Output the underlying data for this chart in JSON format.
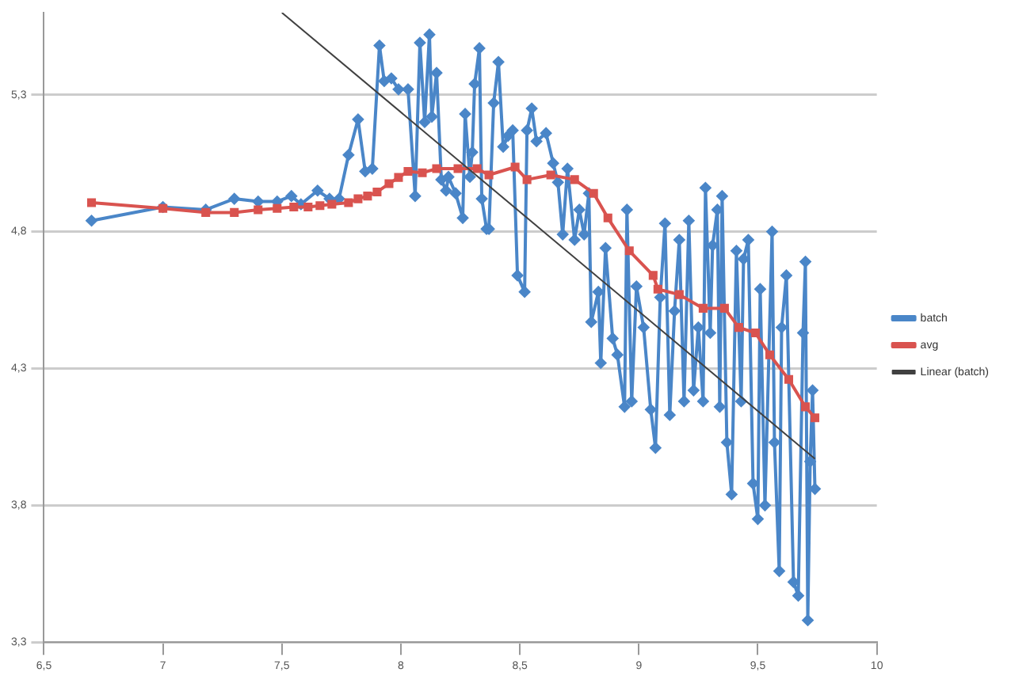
{
  "chart_data": {
    "type": "line",
    "xlim": [
      6.5,
      10
    ],
    "xticks": [
      {
        "value": 6.5,
        "label": "6,5"
      },
      7,
      {
        "value": 7.5,
        "label": "7,5"
      },
      8,
      {
        "value": 8.5,
        "label": "8,5"
      },
      9,
      {
        "value": 9.5,
        "label": "9,5"
      },
      10
    ],
    "ylim": [
      3.3,
      5.6
    ],
    "yticks": [
      {
        "value": 3.3,
        "label": "3,3"
      },
      {
        "value": 3.8,
        "label": "3,8"
      },
      {
        "value": 4.3,
        "label": "4,3"
      },
      {
        "value": 4.8,
        "label": "4,8"
      },
      {
        "value": 5.3,
        "label": "5,3"
      }
    ],
    "grid": "y",
    "legend": "right",
    "series": [
      {
        "name": "batch",
        "color": "#4a86c8",
        "marker": "diamond",
        "x": [
          6.7,
          7.0,
          7.18,
          7.3,
          7.4,
          7.48,
          7.54,
          7.58,
          7.65,
          7.7,
          7.74,
          7.78,
          7.82,
          7.85,
          7.88,
          7.91,
          7.93,
          7.96,
          7.99,
          8.03,
          8.06,
          8.08,
          8.1,
          8.12,
          8.13,
          8.15,
          8.17,
          8.19,
          8.2,
          8.23,
          8.26,
          8.27,
          8.29,
          8.3,
          8.31,
          8.33,
          8.34,
          8.36,
          8.37,
          8.39,
          8.41,
          8.43,
          8.45,
          8.47,
          8.49,
          8.52,
          8.53,
          8.55,
          8.57,
          8.61,
          8.64,
          8.66,
          8.68,
          8.7,
          8.73,
          8.75,
          8.77,
          8.79,
          8.8,
          8.83,
          8.84,
          8.86,
          8.89,
          8.91,
          8.94,
          8.95,
          8.97,
          8.99,
          9.02,
          9.05,
          9.07,
          9.09,
          9.11,
          9.13,
          9.15,
          9.17,
          9.19,
          9.21,
          9.23,
          9.25,
          9.27,
          9.28,
          9.3,
          9.31,
          9.33,
          9.34,
          9.35,
          9.37,
          9.39,
          9.41,
          9.43,
          9.44,
          9.46,
          9.48,
          9.5,
          9.51,
          9.53,
          9.56,
          9.57,
          9.59,
          9.6,
          9.62,
          9.65,
          9.67,
          9.69,
          9.7,
          9.71,
          9.72,
          9.73,
          9.74
        ],
        "values": [
          4.84,
          4.89,
          4.88,
          4.92,
          4.91,
          4.91,
          4.93,
          4.9,
          4.95,
          4.92,
          4.92,
          5.08,
          5.21,
          5.02,
          5.03,
          5.48,
          5.35,
          5.36,
          5.32,
          5.32,
          4.93,
          5.49,
          5.2,
          5.52,
          5.22,
          5.38,
          4.99,
          4.95,
          5.0,
          4.94,
          4.85,
          5.23,
          5.0,
          5.09,
          5.34,
          5.47,
          4.92,
          4.81,
          4.81,
          5.27,
          5.42,
          5.11,
          5.15,
          5.17,
          4.64,
          4.58,
          5.17,
          5.25,
          5.13,
          5.16,
          5.05,
          4.98,
          4.79,
          5.03,
          4.77,
          4.88,
          4.79,
          4.94,
          4.47,
          4.58,
          4.32,
          4.74,
          4.41,
          4.35,
          4.16,
          4.88,
          4.18,
          4.6,
          4.45,
          4.15,
          4.01,
          4.56,
          4.83,
          4.13,
          4.51,
          4.77,
          4.18,
          4.84,
          4.22,
          4.45,
          4.18,
          4.96,
          4.43,
          4.75,
          4.88,
          4.16,
          4.93,
          4.03,
          3.84,
          4.73,
          4.18,
          4.7,
          4.77,
          3.88,
          3.75,
          4.59,
          3.8,
          4.8,
          4.03,
          3.56,
          4.45,
          4.64,
          3.52,
          3.47,
          4.43,
          4.69,
          3.38,
          3.96,
          4.22,
          3.86
        ]
      },
      {
        "name": "avg",
        "color": "#d9534f",
        "marker": "square",
        "x": [
          6.7,
          7.0,
          7.18,
          7.3,
          7.4,
          7.48,
          7.55,
          7.61,
          7.66,
          7.71,
          7.78,
          7.82,
          7.86,
          7.9,
          7.95,
          7.99,
          8.03,
          8.09,
          8.15,
          8.24,
          8.32,
          8.37,
          8.48,
          8.53,
          8.63,
          8.73,
          8.81,
          8.87,
          8.96,
          9.06,
          9.08,
          9.17,
          9.27,
          9.36,
          9.42,
          9.49,
          9.55,
          9.63,
          9.7,
          9.74
        ],
        "values": [
          4.906,
          4.885,
          4.87,
          4.87,
          4.88,
          4.885,
          4.89,
          4.89,
          4.895,
          4.9,
          4.906,
          4.92,
          4.93,
          4.945,
          4.975,
          4.998,
          5.02,
          5.015,
          5.03,
          5.03,
          5.03,
          5.007,
          5.036,
          4.99,
          5.007,
          4.99,
          4.94,
          4.85,
          4.73,
          4.64,
          4.59,
          4.57,
          4.52,
          4.52,
          4.45,
          4.43,
          4.35,
          4.26,
          4.16,
          4.12
        ]
      },
      {
        "name": "Linear (batch)",
        "color": "#404040",
        "marker": "none",
        "x": [
          7.5,
          9.74
        ],
        "values": [
          5.6,
          3.97
        ]
      }
    ]
  }
}
